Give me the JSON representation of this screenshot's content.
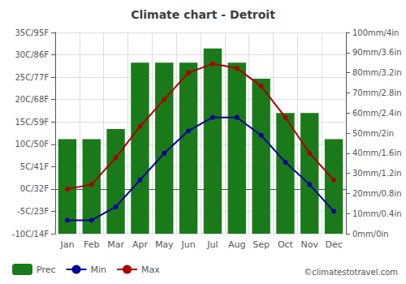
{
  "chart_data": {
    "type": "bar",
    "title": "Climate chart - Detroit",
    "categories": [
      "Jan",
      "Feb",
      "Mar",
      "Apr",
      "May",
      "Jun",
      "Jul",
      "Aug",
      "Sep",
      "Oct",
      "Nov",
      "Dec"
    ],
    "series": [
      {
        "name": "Prec",
        "type": "bar",
        "axis": "y2",
        "color": "#1a7a1a",
        "values": [
          47,
          47,
          52,
          85,
          85,
          85,
          92,
          85,
          77,
          60,
          60,
          47
        ]
      },
      {
        "name": "Min",
        "type": "line",
        "marker": "circle",
        "color": "#000099",
        "values": [
          -7,
          -7,
          -4,
          2,
          8,
          13,
          16,
          16,
          12,
          6,
          1,
          -5
        ]
      },
      {
        "name": "Max",
        "type": "line",
        "marker": "circle",
        "color": "#aa0000",
        "values": [
          0,
          1,
          7,
          14,
          20,
          26,
          28,
          27,
          23,
          16,
          8,
          2
        ]
      }
    ],
    "ylim": [
      -10,
      35
    ],
    "yticks": [
      {
        "value": -10,
        "label": "-10C/14F"
      },
      {
        "value": -5,
        "label": "-5C/23F"
      },
      {
        "value": 0,
        "label": "0C/32F"
      },
      {
        "value": 5,
        "label": "5C/41F"
      },
      {
        "value": 10,
        "label": "10C/50F"
      },
      {
        "value": 15,
        "label": "15C/59F"
      },
      {
        "value": 20,
        "label": "20C/68F"
      },
      {
        "value": 25,
        "label": "25C/77F"
      },
      {
        "value": 30,
        "label": "30C/86F"
      },
      {
        "value": 35,
        "label": "35C/95F"
      }
    ],
    "y2lim": [
      0,
      100
    ],
    "y2ticks": [
      {
        "value": 0,
        "label": "0mm/0in"
      },
      {
        "value": 10,
        "label": "10mm/0.4in"
      },
      {
        "value": 20,
        "label": "20mm/0.8in"
      },
      {
        "value": 30,
        "label": "30mm/1.2in"
      },
      {
        "value": 40,
        "label": "40mm/1.6in"
      },
      {
        "value": 50,
        "label": "50mm/2in"
      },
      {
        "value": 60,
        "label": "60mm/2.4in"
      },
      {
        "value": 70,
        "label": "70mm/2.8in"
      },
      {
        "value": 80,
        "label": "80mm/3.2in"
      },
      {
        "value": 90,
        "label": "90mm/3.6in"
      },
      {
        "value": 100,
        "label": "100mm/4in"
      }
    ],
    "grid": true,
    "legend": "lower left",
    "annotations": [
      "©climatestotravel.com"
    ]
  }
}
